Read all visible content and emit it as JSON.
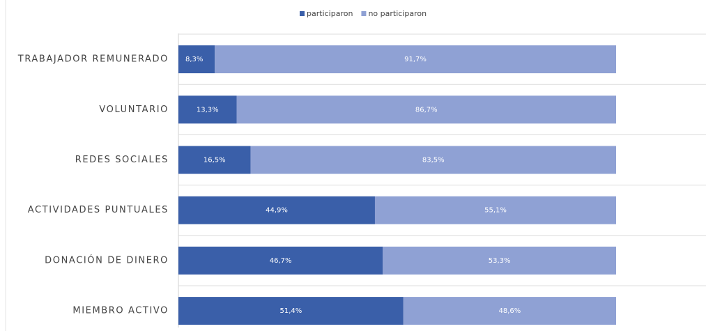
{
  "chart_data": {
    "type": "bar",
    "orientation": "horizontal",
    "stacked": true,
    "categories": [
      "TRABAJADOR REMUNERADO",
      "VOLUNTARIO",
      "REDES SOCIALES",
      "ACTIVIDADES PUNTUALES",
      "DONACIÓN DE DINERO",
      "MIEMBRO ACTIVO"
    ],
    "series": [
      {
        "name": "participaron",
        "color": "#3a5fa9",
        "values": [
          8.3,
          13.3,
          16.5,
          44.9,
          46.7,
          51.4
        ],
        "value_labels": [
          "8,3%",
          "13,3%",
          "16,5%",
          "44,9%",
          "46,7%",
          "51,4%"
        ]
      },
      {
        "name": "no participaron",
        "color": "#8fa1d4",
        "values": [
          91.7,
          86.7,
          83.5,
          55.1,
          53.3,
          48.6
        ],
        "value_labels": [
          "91,7%",
          "86,7%",
          "83,5%",
          "55,1%",
          "53,3%",
          "48,6%"
        ]
      }
    ],
    "xlim": [
      0,
      100
    ],
    "legend": "top"
  }
}
